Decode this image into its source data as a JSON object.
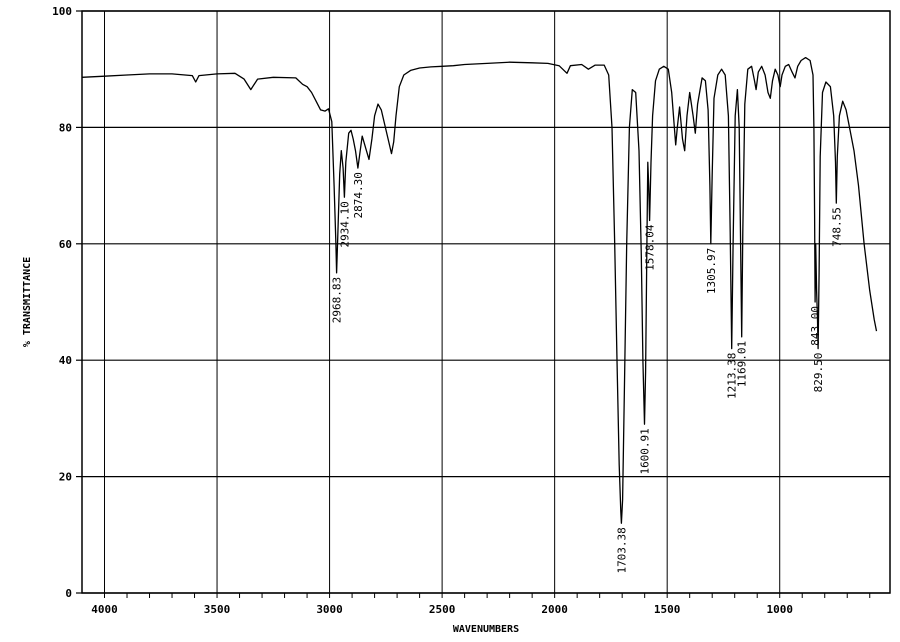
{
  "chart_data": {
    "type": "line",
    "title": "",
    "xlabel": "WAVENUMBERS",
    "ylabel": "% TRANSMITTANCE",
    "xlim": [
      4100,
      510
    ],
    "ylim": [
      0,
      100
    ],
    "x_reversed": true,
    "grid": true,
    "x_ticks": [
      {
        "value": 4000,
        "label": "4000"
      },
      {
        "value": 3500,
        "label": "3500"
      },
      {
        "value": 3000,
        "label": "3000"
      },
      {
        "value": 2500,
        "label": "2500"
      },
      {
        "value": 2000,
        "label": "2000"
      },
      {
        "value": 1500,
        "label": "1500"
      },
      {
        "value": 1000,
        "label": "1000"
      }
    ],
    "y_ticks": [
      {
        "value": 0,
        "label": "0"
      },
      {
        "value": 20,
        "label": "20"
      },
      {
        "value": 40,
        "label": "40"
      },
      {
        "value": 60,
        "label": "60"
      },
      {
        "value": 80,
        "label": "80"
      },
      {
        "value": 100,
        "label": "100"
      }
    ],
    "peak_labels": [
      {
        "x": 2968.83,
        "y": 55,
        "label": "2968.83"
      },
      {
        "x": 2934.1,
        "y": 68,
        "label": "2934.10"
      },
      {
        "x": 2874.3,
        "y": 73,
        "label": "2874.30"
      },
      {
        "x": 1703.38,
        "y": 12,
        "label": "1703.38"
      },
      {
        "x": 1600.91,
        "y": 29,
        "label": "1600.91"
      },
      {
        "x": 1578.04,
        "y": 64,
        "label": "1578.04"
      },
      {
        "x": 1305.97,
        "y": 60,
        "label": "1305.97"
      },
      {
        "x": 1213.38,
        "y": 42,
        "label": "1213.38"
      },
      {
        "x": 1169.01,
        "y": 44,
        "label": "1169.01"
      },
      {
        "x": 843.0,
        "y": 50,
        "label": "843.00"
      },
      {
        "x": 829.5,
        "y": 42,
        "label": "829.50"
      },
      {
        "x": 748.55,
        "y": 67,
        "label": "748.55"
      }
    ],
    "series": [
      {
        "points": [
          [
            4100,
            88.6
          ],
          [
            4000,
            88.8
          ],
          [
            3900,
            89.0
          ],
          [
            3800,
            89.2
          ],
          [
            3700,
            89.2
          ],
          [
            3610,
            88.9
          ],
          [
            3595,
            87.8
          ],
          [
            3580,
            88.9
          ],
          [
            3500,
            89.2
          ],
          [
            3420,
            89.3
          ],
          [
            3380,
            88.3
          ],
          [
            3350,
            86.5
          ],
          [
            3320,
            88.3
          ],
          [
            3250,
            88.6
          ],
          [
            3150,
            88.5
          ],
          [
            3120,
            87.4
          ],
          [
            3100,
            87.0
          ],
          [
            3080,
            86.0
          ],
          [
            3060,
            84.5
          ],
          [
            3040,
            83.0
          ],
          [
            3020,
            82.8
          ],
          [
            3005,
            83.2
          ],
          [
            2990,
            81.0
          ],
          [
            2980,
            70.0
          ],
          [
            2972,
            60.0
          ],
          [
            2968.8,
            55.0
          ],
          [
            2963,
            62.0
          ],
          [
            2955,
            72.0
          ],
          [
            2948,
            76.0
          ],
          [
            2940,
            73.0
          ],
          [
            2934.1,
            68.0
          ],
          [
            2928,
            74.0
          ],
          [
            2915,
            79.0
          ],
          [
            2905,
            79.5
          ],
          [
            2895,
            78.0
          ],
          [
            2885,
            76.0
          ],
          [
            2874.3,
            73.0
          ],
          [
            2864,
            76.0
          ],
          [
            2855,
            78.5
          ],
          [
            2840,
            76.5
          ],
          [
            2825,
            74.5
          ],
          [
            2812,
            78.0
          ],
          [
            2800,
            82.0
          ],
          [
            2785,
            84.0
          ],
          [
            2770,
            83.0
          ],
          [
            2755,
            80.5
          ],
          [
            2740,
            78.0
          ],
          [
            2725,
            75.5
          ],
          [
            2715,
            77.5
          ],
          [
            2705,
            82.0
          ],
          [
            2690,
            87.0
          ],
          [
            2670,
            89.0
          ],
          [
            2640,
            89.8
          ],
          [
            2600,
            90.2
          ],
          [
            2550,
            90.4
          ],
          [
            2500,
            90.5
          ],
          [
            2450,
            90.6
          ],
          [
            2400,
            90.8
          ],
          [
            2300,
            91.0
          ],
          [
            2200,
            91.2
          ],
          [
            2100,
            91.1
          ],
          [
            2030,
            91.0
          ],
          [
            1980,
            90.6
          ],
          [
            1945,
            89.3
          ],
          [
            1930,
            90.6
          ],
          [
            1880,
            90.8
          ],
          [
            1850,
            90.0
          ],
          [
            1820,
            90.7
          ],
          [
            1780,
            90.7
          ],
          [
            1760,
            89.0
          ],
          [
            1745,
            80.0
          ],
          [
            1733,
            60.0
          ],
          [
            1723,
            40.0
          ],
          [
            1713,
            22.0
          ],
          [
            1706,
            14.0
          ],
          [
            1703.4,
            12.0
          ],
          [
            1698,
            16.0
          ],
          [
            1690,
            35.0
          ],
          [
            1680,
            60.0
          ],
          [
            1668,
            80.0
          ],
          [
            1655,
            86.5
          ],
          [
            1640,
            86.0
          ],
          [
            1625,
            76.0
          ],
          [
            1615,
            58.0
          ],
          [
            1608,
            40.0
          ],
          [
            1600.9,
            29.0
          ],
          [
            1596,
            38.0
          ],
          [
            1590,
            60.0
          ],
          [
            1586,
            74.0
          ],
          [
            1582,
            70.0
          ],
          [
            1578.0,
            64.0
          ],
          [
            1572,
            74.0
          ],
          [
            1565,
            82.0
          ],
          [
            1552,
            88.0
          ],
          [
            1535,
            90.0
          ],
          [
            1515,
            90.5
          ],
          [
            1495,
            90.0
          ],
          [
            1480,
            86.0
          ],
          [
            1470,
            81.0
          ],
          [
            1462,
            77.0
          ],
          [
            1455,
            80.0
          ],
          [
            1445,
            83.5
          ],
          [
            1432,
            78.0
          ],
          [
            1422,
            76.0
          ],
          [
            1412,
            82.0
          ],
          [
            1400,
            86.0
          ],
          [
            1385,
            82.0
          ],
          [
            1375,
            79.0
          ],
          [
            1365,
            84.0
          ],
          [
            1345,
            88.5
          ],
          [
            1330,
            88.0
          ],
          [
            1318,
            83.0
          ],
          [
            1310,
            70.0
          ],
          [
            1306.0,
            60.0
          ],
          [
            1300,
            72.0
          ],
          [
            1292,
            85.0
          ],
          [
            1275,
            89.0
          ],
          [
            1258,
            90.0
          ],
          [
            1242,
            89.0
          ],
          [
            1228,
            82.0
          ],
          [
            1220,
            62.0
          ],
          [
            1213.4,
            42.0
          ],
          [
            1207,
            60.0
          ],
          [
            1198,
            82.0
          ],
          [
            1188,
            86.5
          ],
          [
            1180,
            80.0
          ],
          [
            1174,
            60.0
          ],
          [
            1169.0,
            44.0
          ],
          [
            1164,
            62.0
          ],
          [
            1155,
            84.0
          ],
          [
            1142,
            90.0
          ],
          [
            1125,
            90.5
          ],
          [
            1112,
            88.0
          ],
          [
            1105,
            86.5
          ],
          [
            1095,
            89.5
          ],
          [
            1080,
            90.5
          ],
          [
            1065,
            89.0
          ],
          [
            1052,
            86.0
          ],
          [
            1042,
            85.0
          ],
          [
            1032,
            88.0
          ],
          [
            1020,
            90.0
          ],
          [
            1008,
            89.0
          ],
          [
            998,
            87.0
          ],
          [
            990,
            89.0
          ],
          [
            975,
            90.5
          ],
          [
            960,
            90.8
          ],
          [
            945,
            89.5
          ],
          [
            932,
            88.5
          ],
          [
            920,
            90.5
          ],
          [
            905,
            91.5
          ],
          [
            885,
            92.0
          ],
          [
            865,
            91.5
          ],
          [
            852,
            89.0
          ],
          [
            848,
            80.0
          ],
          [
            845,
            65.0
          ],
          [
            843.0,
            50.0
          ],
          [
            840,
            60.0
          ],
          [
            836,
            52.0
          ],
          [
            832,
            47.0
          ],
          [
            829.5,
            42.0
          ],
          [
            825,
            55.0
          ],
          [
            820,
            75.0
          ],
          [
            810,
            86.0
          ],
          [
            795,
            87.8
          ],
          [
            775,
            87.0
          ],
          [
            760,
            82.0
          ],
          [
            752,
            74.0
          ],
          [
            748.6,
            67.0
          ],
          [
            744,
            75.0
          ],
          [
            735,
            82.0
          ],
          [
            720,
            84.5
          ],
          [
            705,
            83.0
          ],
          [
            690,
            80.0
          ],
          [
            670,
            76.0
          ],
          [
            650,
            70.0
          ],
          [
            625,
            60.0
          ],
          [
            600,
            52.0
          ],
          [
            580,
            47.0
          ],
          [
            570,
            45.0
          ]
        ]
      }
    ]
  }
}
